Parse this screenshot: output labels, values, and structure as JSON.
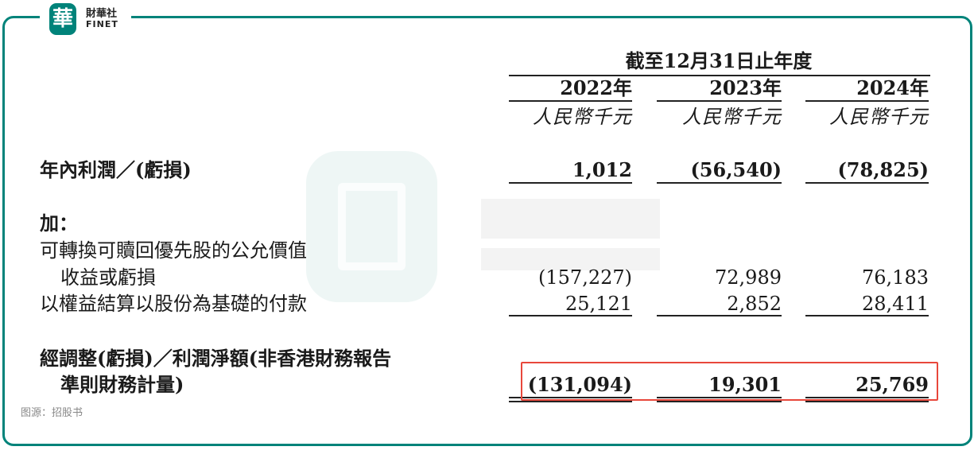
{
  "brand": {
    "logo_char": "華",
    "name_zh": "財華社",
    "name_en": "FINET",
    "accent": "#00837a"
  },
  "header": {
    "period": "截至12月31日止年度",
    "years": [
      "2022年",
      "2023年",
      "2024年"
    ],
    "unit": "人民幣千元"
  },
  "rows": [
    {
      "label": "年內利潤／(虧損)",
      "values": [
        "1,012",
        "(56,540)",
        "(78,825)"
      ]
    },
    {
      "label": "加："
    },
    {
      "label": "可轉換可贖回優先股的公允價值"
    },
    {
      "label": "收益或虧損",
      "values": [
        "(157,227)",
        "72,989",
        "76,183"
      ]
    },
    {
      "label": "以權益結算以股份為基礎的付款",
      "values": [
        "25,121",
        "2,852",
        "28,411"
      ]
    },
    {
      "label": "經調整(虧損)／利潤淨額(非香港財務報告"
    },
    {
      "label": "準則財務計量)",
      "values": [
        "(131,094)",
        "19,301",
        "25,769"
      ]
    }
  ],
  "source": "图源：招股书",
  "highlight_color": "#e8473b"
}
